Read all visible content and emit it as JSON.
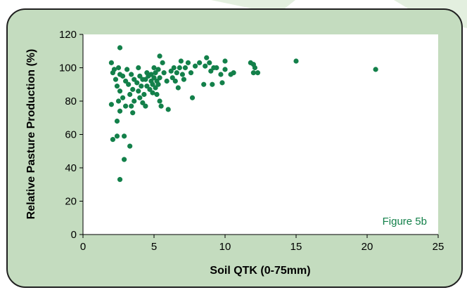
{
  "figure_label": "Figure 5b",
  "colors": {
    "page_background": "#ffffff",
    "backdrop_leaf": "#e3efdf",
    "panel_fill": "#c4dcbf",
    "panel_border": "#202020",
    "plot_fill": "#ffffff",
    "axis": "#000000",
    "marker": "#13804a",
    "figure_label": "#13804a"
  },
  "chart_data": {
    "type": "scatter",
    "title": "",
    "xlabel": "Soil QTK (0-75mm)",
    "ylabel": "Relative Pasture Production (%)",
    "xlim": [
      0,
      25
    ],
    "ylim": [
      0,
      120
    ],
    "xticks": [
      0,
      5,
      10,
      15,
      20,
      25
    ],
    "yticks": [
      0,
      20,
      40,
      60,
      80,
      100,
      120
    ],
    "grid": false,
    "legend": "none",
    "points": [
      [
        2.6,
        112
      ],
      [
        2.0,
        103
      ],
      [
        2.2,
        99
      ],
      [
        2.1,
        97
      ],
      [
        2.5,
        100
      ],
      [
        2.6,
        96
      ],
      [
        2.3,
        93
      ],
      [
        2.4,
        89
      ],
      [
        2.8,
        95
      ],
      [
        3.0,
        92
      ],
      [
        2.6,
        86
      ],
      [
        2.8,
        82
      ],
      [
        2.5,
        80
      ],
      [
        2.0,
        78
      ],
      [
        2.4,
        68
      ],
      [
        2.6,
        74
      ],
      [
        3.0,
        77
      ],
      [
        2.4,
        59
      ],
      [
        2.1,
        57
      ],
      [
        2.9,
        59
      ],
      [
        3.3,
        53
      ],
      [
        2.9,
        45
      ],
      [
        2.6,
        33
      ],
      [
        3.1,
        99
      ],
      [
        3.4,
        96
      ],
      [
        3.6,
        93
      ],
      [
        3.2,
        90
      ],
      [
        3.5,
        87
      ],
      [
        3.3,
        84
      ],
      [
        3.6,
        80
      ],
      [
        3.4,
        77
      ],
      [
        3.5,
        73
      ],
      [
        3.9,
        100
      ],
      [
        4.0,
        95
      ],
      [
        4.2,
        93
      ],
      [
        4.1,
        89
      ],
      [
        3.9,
        86
      ],
      [
        4.3,
        84
      ],
      [
        4.0,
        82
      ],
      [
        4.2,
        79
      ],
      [
        3.8,
        91
      ],
      [
        4.5,
        97
      ],
      [
        4.4,
        93
      ],
      [
        4.6,
        95
      ],
      [
        4.5,
        89
      ],
      [
        4.8,
        92
      ],
      [
        4.7,
        87
      ],
      [
        4.4,
        77
      ],
      [
        4.8,
        96
      ],
      [
        5.0,
        94
      ],
      [
        4.9,
        90
      ],
      [
        5.1,
        88
      ],
      [
        4.9,
        85
      ],
      [
        5.2,
        92
      ],
      [
        5.1,
        97
      ],
      [
        5.0,
        100
      ],
      [
        5.3,
        99
      ],
      [
        5.4,
        94
      ],
      [
        5.3,
        90
      ],
      [
        5.2,
        84
      ],
      [
        5.4,
        80
      ],
      [
        5.5,
        77
      ],
      [
        5.4,
        107
      ],
      [
        5.6,
        103
      ],
      [
        5.7,
        97
      ],
      [
        5.9,
        92
      ],
      [
        6.0,
        75
      ],
      [
        6.2,
        98
      ],
      [
        6.3,
        94
      ],
      [
        6.5,
        92
      ],
      [
        6.6,
        97
      ],
      [
        6.4,
        100
      ],
      [
        6.7,
        88
      ],
      [
        6.8,
        100
      ],
      [
        6.9,
        104
      ],
      [
        7.0,
        96
      ],
      [
        7.1,
        93
      ],
      [
        7.2,
        100
      ],
      [
        7.4,
        103
      ],
      [
        7.6,
        97
      ],
      [
        7.7,
        82
      ],
      [
        7.9,
        101
      ],
      [
        8.2,
        103
      ],
      [
        8.5,
        90
      ],
      [
        8.7,
        106
      ],
      [
        8.6,
        101
      ],
      [
        8.9,
        103
      ],
      [
        9.0,
        98
      ],
      [
        9.1,
        90
      ],
      [
        9.2,
        100
      ],
      [
        9.4,
        100
      ],
      [
        9.7,
        96
      ],
      [
        9.8,
        91
      ],
      [
        10.0,
        104
      ],
      [
        10.0,
        99
      ],
      [
        10.4,
        96
      ],
      [
        10.6,
        97
      ],
      [
        11.8,
        103
      ],
      [
        12.0,
        102
      ],
      [
        12.0,
        97
      ],
      [
        12.1,
        100
      ],
      [
        12.3,
        97
      ],
      [
        15.0,
        104
      ],
      [
        20.6,
        99
      ]
    ]
  }
}
